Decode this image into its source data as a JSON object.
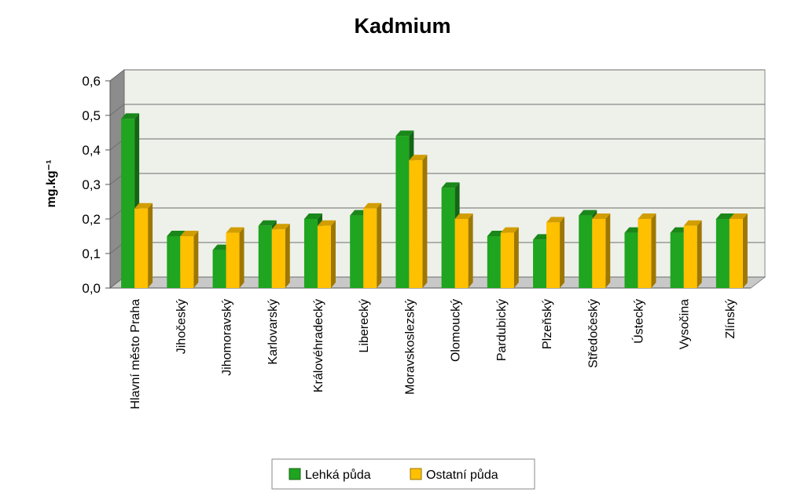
{
  "chart_data": {
    "type": "bar",
    "title": "Kadmium",
    "ylabel": "mg.kg⁻¹",
    "xlabel": "",
    "ylim": [
      0,
      0.6
    ],
    "ytick_labels": [
      "0,0",
      "0,1",
      "0,2",
      "0,3",
      "0,4",
      "0,5",
      "0,6"
    ],
    "categories": [
      "Hlavní město Praha",
      "Jihočeský",
      "Jihomoravský",
      "Karlovarský",
      "Královéhradecký",
      "Liberecký",
      "Moravskoslezský",
      "Olomoucký",
      "Pardubický",
      "Plzeňský",
      "Středočeský",
      "Ústecký",
      "Vysočina",
      "Zlínský"
    ],
    "series": [
      {
        "name": "Lehká půda",
        "color": "#1fa51f",
        "values": [
          0.49,
          0.15,
          0.11,
          0.18,
          0.2,
          0.21,
          0.44,
          0.29,
          0.15,
          0.14,
          0.21,
          0.16,
          0.16,
          0.2
        ]
      },
      {
        "name": "Ostatní půda",
        "color": "#ffc000",
        "values": [
          0.23,
          0.15,
          0.16,
          0.17,
          0.18,
          0.23,
          0.37,
          0.2,
          0.16,
          0.19,
          0.2,
          0.2,
          0.18,
          0.2
        ]
      }
    ],
    "grid": true,
    "legend_position": "bottom",
    "style": "3d-clustered-column"
  }
}
